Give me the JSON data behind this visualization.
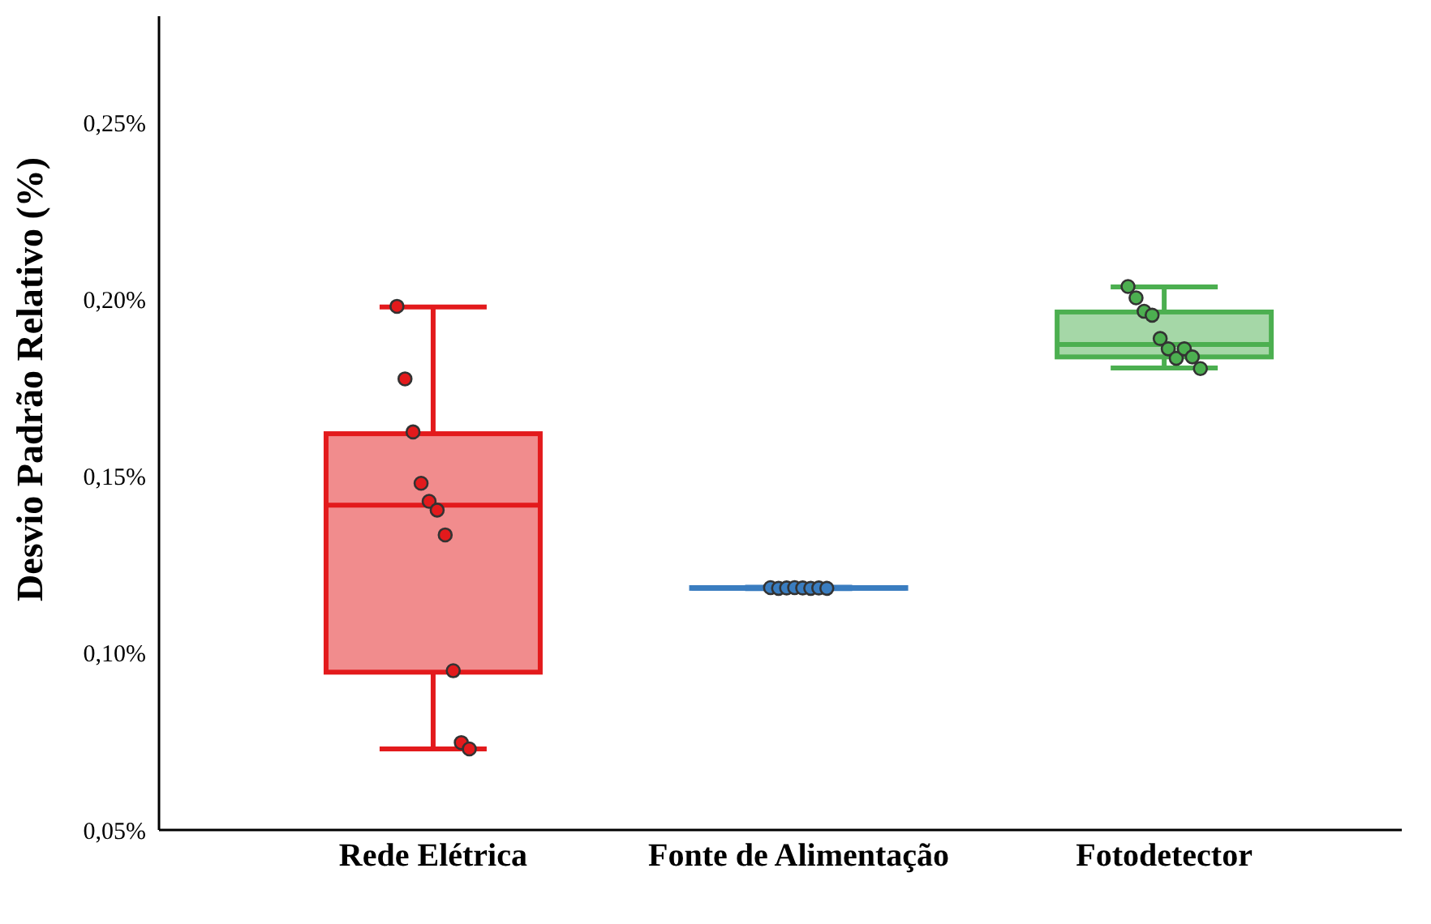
{
  "chart_data": {
    "type": "box",
    "ylabel": "Desvio Padrão Relativo (%)",
    "categories": [
      "Rede Elétrica",
      "Fonte de Alimentação",
      "Fotodetector"
    ],
    "ylim": [
      0.05,
      0.28
    ],
    "yticks": [
      {
        "value": 0.05,
        "label": "0,05%"
      },
      {
        "value": 0.1,
        "label": "0,10%"
      },
      {
        "value": 0.15,
        "label": "0,15%"
      },
      {
        "value": 0.2,
        "label": "0,20%"
      },
      {
        "value": 0.25,
        "label": "0,25%"
      }
    ],
    "grid": false,
    "legend": false,
    "series": [
      {
        "colors": [
          "#e31a1c",
          "#3a7dc0",
          "#4caf50"
        ],
        "boxes": [
          {
            "low": 0.0729,
            "q1": 0.0946,
            "median": 0.1418,
            "q3": 0.162,
            "high": 0.1978
          },
          {
            "low": 0.1182,
            "q1": 0.1183,
            "median": 0.1184,
            "q3": 0.1185,
            "high": 0.1186
          },
          {
            "low": 0.1806,
            "q1": 0.1837,
            "median": 0.1872,
            "q3": 0.1964,
            "high": 0.2035
          }
        ]
      },
      {
        "type": "scatter",
        "color": "#e31a1c",
        "x": [
          "Rede Elétrica",
          "Rede Elétrica",
          "Rede Elétrica",
          "Rede Elétrica",
          "Rede Elétrica",
          "Rede Elétrica",
          "Rede Elétrica",
          "Rede Elétrica",
          "Rede Elétrica",
          "Rede Elétrica"
        ],
        "values": [
          0.198,
          0.1775,
          0.1625,
          0.148,
          0.1429,
          0.1404,
          0.1334,
          0.095,
          0.0747,
          0.0729
        ]
      },
      {
        "type": "scatter",
        "color": "#3a7dc0",
        "x": [
          "Fonte de Alimentação",
          "Fonte de Alimentação",
          "Fonte de Alimentação",
          "Fonte de Alimentação",
          "Fonte de Alimentação",
          "Fonte de Alimentação",
          "Fonte de Alimentação",
          "Fonte de Alimentação"
        ],
        "values": [
          0.1185,
          0.1183,
          0.1184,
          0.1185,
          0.1184,
          0.1183,
          0.1184,
          0.1183
        ]
      },
      {
        "type": "scatter",
        "color": "#4caf50",
        "x": [
          "Fotodetector",
          "Fotodetector",
          "Fotodetector",
          "Fotodetector",
          "Fotodetector",
          "Fotodetector",
          "Fotodetector",
          "Fotodetector",
          "Fotodetector",
          "Fotodetector"
        ],
        "values": [
          0.2036,
          0.2004,
          0.1966,
          0.1955,
          0.1889,
          0.186,
          0.1833,
          0.186,
          0.1837,
          0.1804
        ]
      }
    ]
  }
}
